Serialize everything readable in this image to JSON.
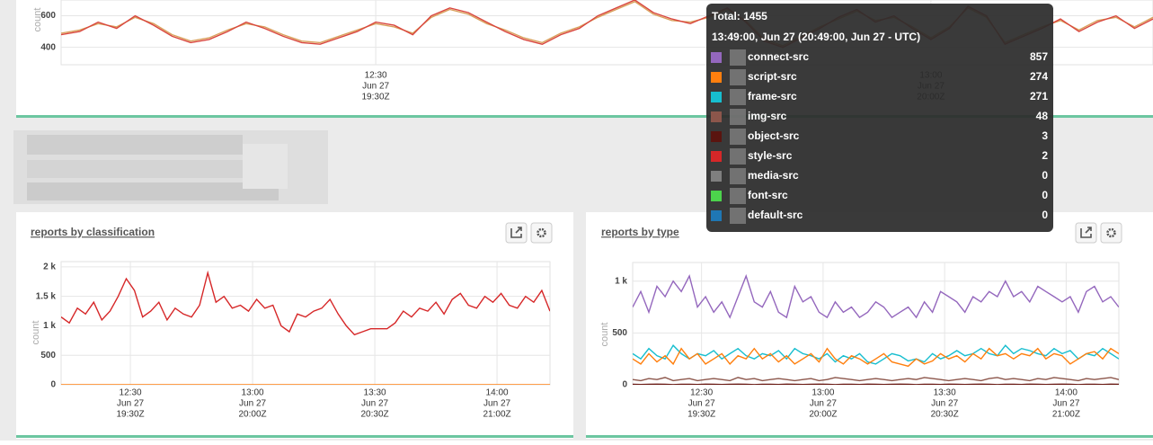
{
  "chart_data": [
    {
      "type": "line",
      "ylabel": "count",
      "xlim": [
        733,
        792
      ],
      "ylim": [
        290,
        700
      ],
      "yticks": [
        400,
        600
      ],
      "xticks": [
        {
          "value": 750,
          "label": [
            "12:30",
            "Jun 27",
            "19:30Z"
          ]
        },
        {
          "value": 780,
          "label": [
            "13:00",
            "Jun 27",
            "20:00Z"
          ]
        }
      ],
      "x": [
        733,
        734,
        735,
        736,
        737,
        738,
        739,
        740,
        741,
        742,
        743,
        744,
        745,
        746,
        747,
        748,
        749,
        750,
        751,
        752,
        753,
        754,
        755,
        756,
        757,
        758,
        759,
        760,
        761,
        762,
        763,
        764,
        765,
        766,
        767,
        768,
        769,
        770,
        771,
        772,
        773,
        774,
        775,
        776,
        777,
        778,
        779,
        780,
        781,
        782,
        783,
        784,
        785,
        786,
        787,
        788,
        789,
        790,
        791,
        792
      ],
      "series": [
        {
          "color": "#d9a05b",
          "values": [
            490,
            510,
            550,
            530,
            590,
            550,
            480,
            440,
            460,
            510,
            550,
            530,
            480,
            440,
            430,
            470,
            510,
            550,
            530,
            490,
            590,
            640,
            610,
            550,
            510,
            460,
            430,
            490,
            530,
            590,
            640,
            690,
            610,
            570,
            560,
            590,
            640,
            570,
            450,
            410,
            470,
            530,
            580,
            630,
            570,
            590,
            530,
            460,
            530,
            650,
            590,
            430,
            480,
            530,
            570,
            510,
            570,
            590,
            530,
            590
          ]
        },
        {
          "color": "#d9463f",
          "values": [
            480,
            500,
            560,
            520,
            600,
            540,
            470,
            430,
            450,
            500,
            560,
            520,
            470,
            430,
            420,
            460,
            500,
            560,
            540,
            480,
            600,
            650,
            620,
            560,
            500,
            450,
            420,
            480,
            520,
            600,
            650,
            700,
            620,
            580,
            550,
            600,
            650,
            560,
            440,
            400,
            460,
            520,
            590,
            640,
            560,
            600,
            520,
            450,
            520,
            660,
            600,
            420,
            470,
            520,
            580,
            500,
            560,
            600,
            520,
            580
          ]
        }
      ]
    },
    {
      "type": "line",
      "title": "reports by classification",
      "ylabel": "count",
      "xlim": [
        733,
        853
      ],
      "ylim": [
        0,
        2090
      ],
      "yticks": [
        0,
        500,
        {
          "value": 1000,
          "label": "1 k"
        },
        {
          "value": 1500,
          "label": "1.5 k"
        },
        {
          "value": 2000,
          "label": "2 k"
        }
      ],
      "xticks": [
        {
          "value": 750,
          "label": [
            "12:30",
            "Jun 27",
            "19:30Z"
          ]
        },
        {
          "value": 780,
          "label": [
            "13:00",
            "Jun 27",
            "20:00Z"
          ]
        },
        {
          "value": 810,
          "label": [
            "13:30",
            "Jun 27",
            "20:30Z"
          ]
        },
        {
          "value": 840,
          "label": [
            "14:00",
            "Jun 27",
            "21:00Z"
          ]
        }
      ],
      "x": [
        733,
        735,
        737,
        739,
        741,
        743,
        745,
        747,
        749,
        751,
        753,
        755,
        757,
        759,
        761,
        763,
        765,
        767,
        769,
        771,
        773,
        775,
        777,
        779,
        781,
        783,
        785,
        787,
        789,
        791,
        793,
        795,
        797,
        799,
        801,
        803,
        805,
        807,
        809,
        811,
        813,
        815,
        817,
        819,
        821,
        823,
        825,
        827,
        829,
        831,
        833,
        835,
        837,
        839,
        841,
        843,
        845,
        847,
        849,
        851,
        853
      ],
      "series": [
        {
          "color": "#ff7f0e",
          "values": [
            0,
            0,
            0,
            0,
            0,
            0,
            0,
            0,
            0,
            0,
            0,
            0,
            0,
            0,
            0,
            0,
            0,
            0,
            0,
            0,
            0,
            0,
            0,
            0,
            0,
            0,
            0,
            0,
            0,
            0,
            0,
            0,
            0,
            0,
            0,
            0,
            0,
            0,
            0,
            0,
            0,
            0,
            0,
            0,
            0,
            0,
            0,
            0,
            0,
            0,
            0,
            0,
            0,
            0,
            0,
            0,
            0,
            0,
            0,
            0,
            0
          ]
        },
        {
          "color": "#d62728",
          "values": [
            1150,
            1050,
            1300,
            1200,
            1400,
            1100,
            1250,
            1500,
            1800,
            1600,
            1150,
            1250,
            1400,
            1100,
            1300,
            1200,
            1150,
            1350,
            1900,
            1400,
            1500,
            1300,
            1350,
            1250,
            1450,
            1300,
            1350,
            1000,
            900,
            1200,
            1150,
            1250,
            1300,
            1450,
            1200,
            1000,
            850,
            900,
            950,
            950,
            950,
            1050,
            1250,
            1150,
            1300,
            1250,
            1400,
            1200,
            1450,
            1550,
            1350,
            1300,
            1500,
            1400,
            1550,
            1350,
            1300,
            1500,
            1400,
            1600,
            1250
          ]
        }
      ]
    },
    {
      "type": "line",
      "title": "reports by type",
      "ylabel": "count",
      "xlim": [
        733,
        853
      ],
      "ylim": [
        0,
        1180
      ],
      "yticks": [
        0,
        500,
        {
          "value": 1000,
          "label": "1 k"
        }
      ],
      "xticks": [
        {
          "value": 750,
          "label": [
            "12:30",
            "Jun 27",
            "19:30Z"
          ]
        },
        {
          "value": 780,
          "label": [
            "13:00",
            "Jun 27",
            "20:00Z"
          ]
        },
        {
          "value": 810,
          "label": [
            "13:30",
            "Jun 27",
            "20:30Z"
          ]
        },
        {
          "value": 840,
          "label": [
            "14:00",
            "Jun 27",
            "21:00Z"
          ]
        }
      ],
      "x": [
        733,
        735,
        737,
        739,
        741,
        743,
        745,
        747,
        749,
        751,
        753,
        755,
        757,
        759,
        761,
        763,
        765,
        767,
        769,
        771,
        773,
        775,
        777,
        779,
        781,
        783,
        785,
        787,
        789,
        791,
        793,
        795,
        797,
        799,
        801,
        803,
        805,
        807,
        809,
        811,
        813,
        815,
        817,
        819,
        821,
        823,
        825,
        827,
        829,
        831,
        833,
        835,
        837,
        839,
        841,
        843,
        845,
        847,
        849,
        851,
        853
      ],
      "series": [
        {
          "color": "#6b1a14",
          "values": [
            5,
            3,
            4,
            6,
            5,
            2,
            4,
            5,
            3,
            6,
            5,
            3,
            4,
            6,
            5,
            2,
            4,
            5,
            3,
            6,
            5,
            3,
            4,
            6,
            5,
            2,
            4,
            5,
            3,
            6,
            5,
            3,
            4,
            6,
            5,
            2,
            4,
            5,
            3,
            6,
            5,
            3,
            4,
            6,
            5,
            2,
            4,
            5,
            3,
            6,
            5,
            3,
            4,
            6,
            5,
            2,
            4,
            5,
            3,
            6,
            4
          ]
        },
        {
          "color": "#8c564b",
          "values": [
            50,
            40,
            60,
            50,
            70,
            40,
            50,
            60,
            40,
            50,
            60,
            50,
            40,
            70,
            50,
            60,
            40,
            50,
            60,
            50,
            40,
            50,
            60,
            40,
            50,
            70,
            60,
            50,
            40,
            50,
            60,
            50,
            40,
            50,
            60,
            50,
            70,
            60,
            50,
            40,
            50,
            60,
            50,
            40,
            60,
            70,
            50,
            60,
            50,
            40,
            60,
            50,
            70,
            60,
            50,
            40,
            60,
            50,
            60,
            70,
            50
          ]
        },
        {
          "color": "#17becf",
          "values": [
            300,
            250,
            350,
            280,
            250,
            380,
            300,
            250,
            300,
            280,
            330,
            250,
            300,
            350,
            280,
            250,
            300,
            280,
            330,
            250,
            350,
            300,
            280,
            250,
            300,
            220,
            280,
            250,
            300,
            220,
            200,
            250,
            300,
            280,
            230,
            250,
            220,
            300,
            250,
            280,
            330,
            280,
            300,
            350,
            300,
            280,
            380,
            300,
            350,
            330,
            300,
            280,
            350,
            300,
            330,
            250,
            300,
            280,
            350,
            300,
            250
          ]
        },
        {
          "color": "#ff7f0e",
          "values": [
            250,
            200,
            300,
            220,
            280,
            200,
            350,
            250,
            300,
            200,
            250,
            300,
            200,
            280,
            250,
            350,
            250,
            300,
            220,
            280,
            200,
            250,
            300,
            220,
            350,
            250,
            200,
            280,
            250,
            200,
            250,
            300,
            220,
            200,
            180,
            250,
            200,
            230,
            300,
            250,
            280,
            220,
            300,
            250,
            350,
            280,
            300,
            250,
            300,
            280,
            350,
            250,
            300,
            280,
            200,
            250,
            300,
            320,
            250,
            350,
            300
          ]
        },
        {
          "color": "#9467bd",
          "values": [
            750,
            900,
            700,
            950,
            850,
            1000,
            900,
            1050,
            750,
            850,
            700,
            800,
            650,
            850,
            1050,
            800,
            750,
            900,
            700,
            650,
            950,
            800,
            850,
            700,
            650,
            800,
            700,
            750,
            650,
            700,
            800,
            750,
            650,
            700,
            750,
            650,
            800,
            700,
            900,
            850,
            800,
            700,
            850,
            800,
            900,
            850,
            1000,
            850,
            900,
            800,
            950,
            900,
            850,
            800,
            850,
            700,
            900,
            950,
            800,
            850,
            750
          ]
        }
      ]
    }
  ],
  "tooltip": {
    "title": "Total: 1455",
    "time": "13:49:00, Jun 27 (20:49:00, Jun 27 - UTC)",
    "rows": [
      {
        "name": "connect-src",
        "color": "#9467bd",
        "value": 857
      },
      {
        "name": "script-src",
        "color": "#ff7f0e",
        "value": 274
      },
      {
        "name": "frame-src",
        "color": "#17becf",
        "value": 271
      },
      {
        "name": "img-src",
        "color": "#8c564b",
        "value": 48
      },
      {
        "name": "object-src",
        "color": "#5a140f",
        "value": 3
      },
      {
        "name": "style-src",
        "color": "#d62728",
        "value": 2
      },
      {
        "name": "media-src",
        "color": "#7f7f7f",
        "value": 0
      },
      {
        "name": "font-src",
        "color": "#4cd34c",
        "value": 0
      },
      {
        "name": "default-src",
        "color": "#1f77b4",
        "value": 0
      }
    ]
  }
}
